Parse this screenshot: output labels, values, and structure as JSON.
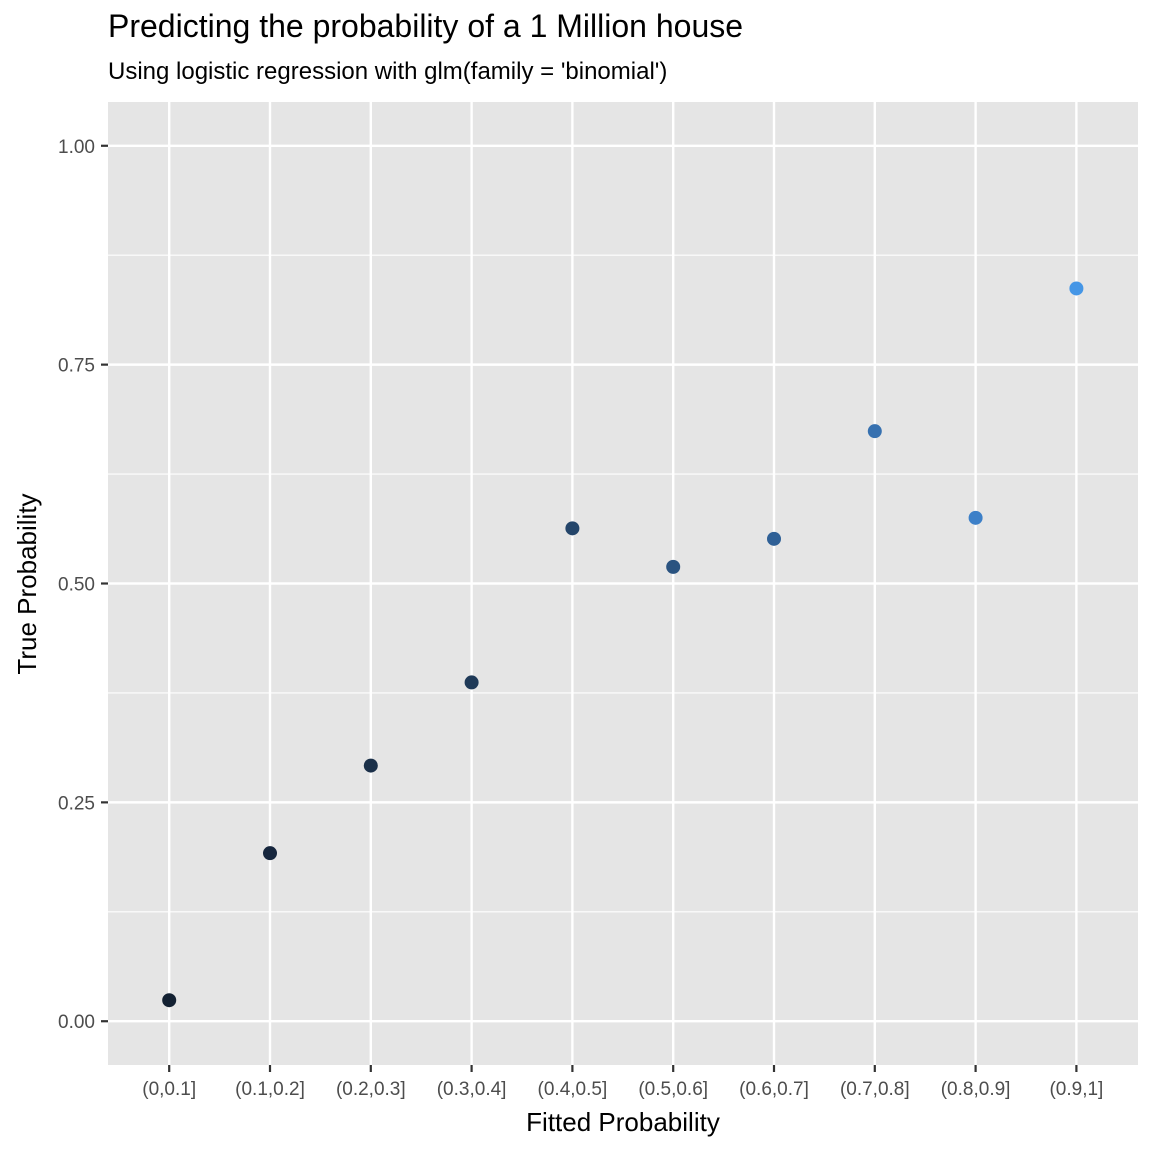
{
  "chart_data": {
    "type": "scatter",
    "title": "Predicting the probability of a 1 Million house",
    "subtitle": "Using logistic regression with glm(family = 'binomial')",
    "xlabel": "Fitted Probability",
    "ylabel": "True Probability",
    "categories": [
      "(0,0.1]",
      "(0.1,0.2]",
      "(0.2,0.3]",
      "(0.3,0.4]",
      "(0.4,0.5]",
      "(0.5,0.6]",
      "(0.6,0.7]",
      "(0.7,0.8]",
      "(0.8,0.9]",
      "(0.9,1]"
    ],
    "values": [
      0.024,
      0.192,
      0.292,
      0.387,
      0.563,
      0.519,
      0.551,
      0.674,
      0.575,
      0.837
    ],
    "ylim": [
      -0.05,
      1.05
    ],
    "yticks": [
      0.0,
      0.25,
      0.5,
      0.75,
      1.0
    ],
    "ytick_labels": [
      "0.00",
      "0.25",
      "0.50",
      "0.75",
      "1.00"
    ],
    "point_colors": [
      "#132132",
      "#16263D",
      "#1B3049",
      "#1F3A58",
      "#24456A",
      "#2A5380",
      "#2F6096",
      "#3771B0",
      "#3D80C8",
      "#4596E6"
    ],
    "grid": true,
    "legend": "none",
    "panel_background": "#E5E5E5",
    "grid_color": "#FFFFFF"
  }
}
